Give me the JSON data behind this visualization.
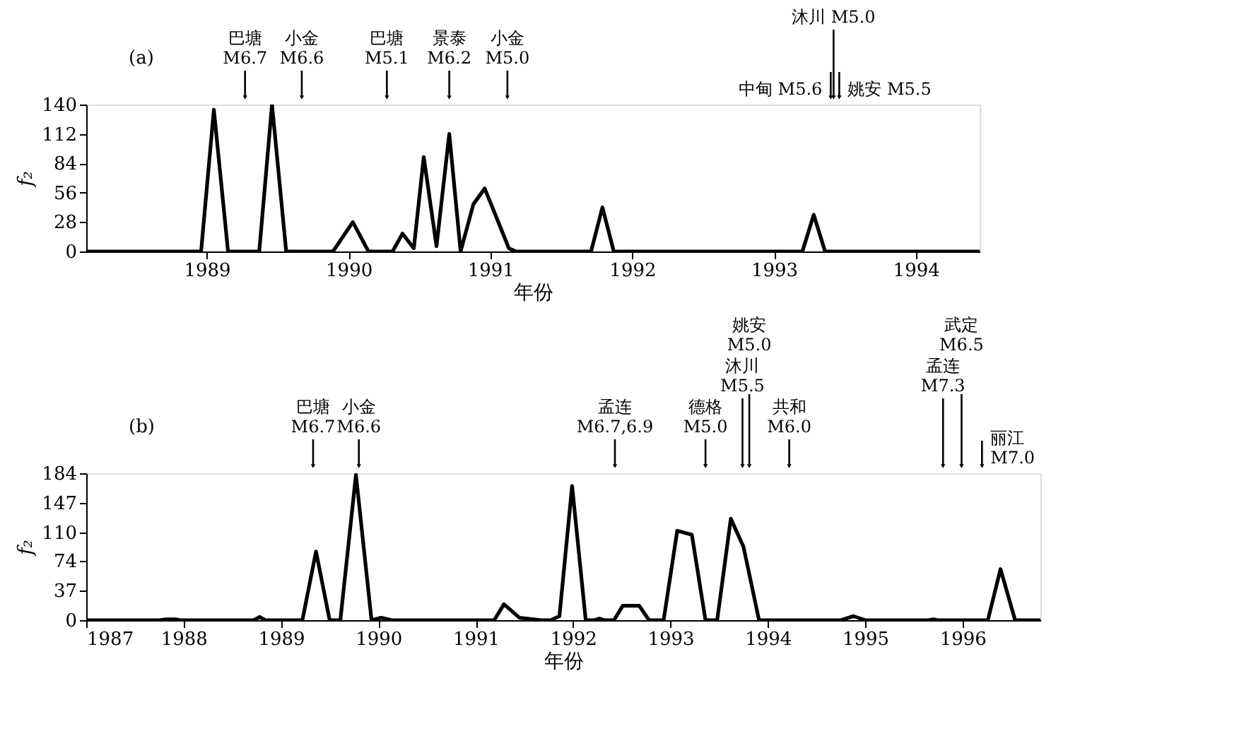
{
  "chart_data": [
    {
      "type": "line",
      "xlabel": "年份",
      "ylabel": "f₂",
      "xlim": [
        1988.15,
        1994.45
      ],
      "ylim": [
        0,
        140
      ],
      "xticks": [
        1989,
        1990,
        1991,
        1992,
        1993,
        1994
      ],
      "yticks": [
        0,
        28,
        56,
        84,
        112,
        140
      ],
      "grid": false,
      "legend": false,
      "marker": "none",
      "line_style": "solid",
      "series": [
        {
          "color": "#000000",
          "x": [
            1988.15,
            1988.96,
            1989.05,
            1989.15,
            1989.37,
            1989.46,
            1989.56,
            1989.89,
            1990.03,
            1990.14,
            1990.31,
            1990.38,
            1990.46,
            1990.53,
            1990.62,
            1990.71,
            1990.79,
            1990.88,
            1990.96,
            1991.05,
            1991.13,
            1991.18,
            1991.71,
            1991.79,
            1991.87,
            1993.2,
            1993.28,
            1993.36,
            1994.45
          ],
          "values": [
            0,
            0,
            135,
            0,
            0,
            140,
            0,
            0,
            28,
            0,
            0,
            17,
            3,
            90,
            5,
            112,
            0,
            45,
            60,
            30,
            3,
            0,
            0,
            42,
            0,
            0,
            35,
            0,
            0
          ]
        }
      ],
      "annotations": [
        "(a)"
      ],
      "ref_lines": [
        {
          "axis": "x",
          "value": 1989.27,
          "label": "巴塘\nM6.7"
        },
        {
          "axis": "x",
          "value": 1989.67,
          "label": "小金\nM6.6"
        },
        {
          "axis": "x",
          "value": 1990.27,
          "label": "巴塘\nM5.1"
        },
        {
          "axis": "x",
          "value": 1990.71,
          "label": "景泰\nM6.2"
        },
        {
          "axis": "x",
          "value": 1991.12,
          "label": "小金\nM5.0"
        },
        {
          "axis": "x",
          "value": 1993.42,
          "label": "沐川 M5.0"
        },
        {
          "axis": "x",
          "value": 1993.4,
          "label": "中甸 M5.6"
        },
        {
          "axis": "x",
          "value": 1993.46,
          "label": "姚安 M5.5"
        }
      ]
    },
    {
      "type": "line",
      "xlabel": "年份",
      "ylabel": "f₂",
      "xlim": [
        1987,
        1996.8
      ],
      "ylim": [
        0,
        184
      ],
      "xticks": [
        1987,
        1988,
        1989,
        1990,
        1991,
        1992,
        1993,
        1994,
        1995,
        1996
      ],
      "yticks": [
        0,
        37,
        74,
        110,
        147,
        184
      ],
      "grid": false,
      "legend": false,
      "marker": "none",
      "line_style": "solid",
      "series": [
        {
          "color": "#000000",
          "x": [
            1987,
            1987.75,
            1987.82,
            1987.92,
            1987.97,
            1988.72,
            1988.78,
            1988.84,
            1989.22,
            1989.36,
            1989.5,
            1989.61,
            1989.77,
            1989.93,
            1990.03,
            1990.14,
            1991.19,
            1991.29,
            1991.45,
            1991.67,
            1991.77,
            1991.86,
            1991.99,
            1992.13,
            1992.22,
            1992.27,
            1992.32,
            1992.42,
            1992.51,
            1992.68,
            1992.78,
            1992.93,
            1993.07,
            1993.22,
            1993.36,
            1993.48,
            1993.62,
            1993.75,
            1993.91,
            1994.75,
            1994.88,
            1995.0,
            1995.65,
            1995.7,
            1995.75,
            1996.26,
            1996.39,
            1996.54,
            1996.8
          ],
          "values": [
            0,
            0,
            1,
            1,
            0,
            0,
            4,
            0,
            0,
            86,
            0,
            0,
            182,
            0,
            3,
            0,
            0,
            20,
            3,
            0,
            0,
            5,
            168,
            0,
            0,
            2,
            0,
            0,
            18,
            18,
            0,
            0,
            112,
            107,
            0,
            0,
            127,
            92,
            0,
            0,
            5,
            0,
            0,
            1,
            0,
            0,
            64,
            0,
            0
          ]
        }
      ],
      "annotations": [
        "(b)"
      ],
      "ref_lines": [
        {
          "axis": "x",
          "value": 1989.33,
          "label": "巴塘\nM6.7"
        },
        {
          "axis": "x",
          "value": 1989.8,
          "label": "小金\nM6.6"
        },
        {
          "axis": "x",
          "value": 1992.43,
          "label": "孟连\nM6.7,6.9"
        },
        {
          "axis": "x",
          "value": 1993.36,
          "label": "德格\nM5.0"
        },
        {
          "axis": "x",
          "value": 1993.74,
          "label": "沐川\nM5.5"
        },
        {
          "axis": "x",
          "value": 1993.81,
          "label": "姚安\nM5.0"
        },
        {
          "axis": "x",
          "value": 1994.22,
          "label": "共和\nM6.0"
        },
        {
          "axis": "x",
          "value": 1995.8,
          "label": "孟连\nM7.3"
        },
        {
          "axis": "x",
          "value": 1995.99,
          "label": "武定\nM6.5"
        },
        {
          "axis": "x",
          "value": 1996.2,
          "label": "丽江\nM7.0"
        }
      ]
    }
  ]
}
